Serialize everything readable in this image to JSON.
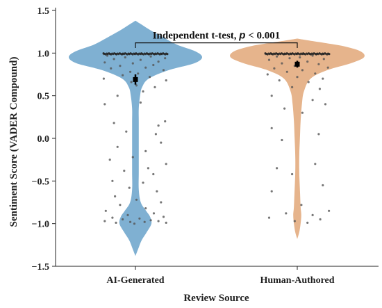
{
  "chart_data": {
    "type": "violin",
    "xlabel": "Review Source",
    "ylabel": "Sentiment Score (VADER Compound)",
    "ylim": [
      -1.5,
      1.5
    ],
    "yticks": [
      -1.5,
      -1.0,
      -0.5,
      0.0,
      0.5,
      1.0,
      1.5
    ],
    "ytick_labels": [
      "−1.5",
      "−1.0",
      "−0.5",
      "0.0",
      "0.5",
      "1.0",
      "1.5"
    ],
    "categories": [
      "AI-Generated",
      "Human-Authored"
    ],
    "series": [
      {
        "category": "AI-Generated",
        "color": "#7fb0d2",
        "mean": 0.69,
        "error": 0.06,
        "density": [
          [
            -1.38,
            0.0
          ],
          [
            -1.3,
            0.04
          ],
          [
            -1.2,
            0.09
          ],
          [
            -1.1,
            0.17
          ],
          [
            -1.0,
            0.24
          ],
          [
            -0.92,
            0.22
          ],
          [
            -0.85,
            0.16
          ],
          [
            -0.75,
            0.08
          ],
          [
            -0.6,
            0.05
          ],
          [
            -0.4,
            0.05
          ],
          [
            -0.2,
            0.05
          ],
          [
            0.0,
            0.05
          ],
          [
            0.2,
            0.05
          ],
          [
            0.35,
            0.05
          ],
          [
            0.5,
            0.07
          ],
          [
            0.6,
            0.1
          ],
          [
            0.7,
            0.2
          ],
          [
            0.8,
            0.5
          ],
          [
            0.88,
            0.88
          ],
          [
            0.95,
            1.0
          ],
          [
            1.02,
            0.9
          ],
          [
            1.1,
            0.62
          ],
          [
            1.2,
            0.38
          ],
          [
            1.28,
            0.2
          ],
          [
            1.35,
            0.06
          ],
          [
            1.38,
            0.0
          ]
        ],
        "points": [
          [
            0.99,
            -0.62
          ],
          [
            0.99,
            -0.5
          ],
          [
            0.99,
            -0.38
          ],
          [
            0.99,
            -0.25
          ],
          [
            0.99,
            -0.12
          ],
          [
            0.99,
            0.0
          ],
          [
            0.99,
            0.12
          ],
          [
            0.99,
            0.25
          ],
          [
            0.99,
            0.38
          ],
          [
            0.99,
            0.5
          ],
          [
            0.99,
            0.62
          ],
          [
            0.97,
            -0.55
          ],
          [
            0.96,
            0.3
          ],
          [
            0.95,
            -0.2
          ],
          [
            0.94,
            0.58
          ],
          [
            0.93,
            -0.42
          ],
          [
            0.92,
            0.1
          ],
          [
            0.9,
            0.45
          ],
          [
            0.89,
            -0.6
          ],
          [
            0.88,
            -0.05
          ],
          [
            0.86,
            0.35
          ],
          [
            0.85,
            -0.3
          ],
          [
            0.83,
            0.2
          ],
          [
            0.82,
            -0.48
          ],
          [
            0.8,
            0.55
          ],
          [
            0.78,
            -0.1
          ],
          [
            0.76,
            0.05
          ],
          [
            0.74,
            -0.25
          ],
          [
            0.72,
            0.28
          ],
          [
            0.7,
            -0.62
          ],
          [
            0.68,
            0.6
          ],
          [
            0.66,
            -0.08
          ],
          [
            0.62,
            0.02
          ],
          [
            0.6,
            0.38
          ],
          [
            0.55,
            0.15
          ],
          [
            0.5,
            -0.35
          ],
          [
            0.42,
            0.1
          ],
          [
            0.4,
            -0.6
          ],
          [
            0.2,
            0.58
          ],
          [
            0.18,
            -0.42
          ],
          [
            0.15,
            0.45
          ],
          [
            0.08,
            -0.18
          ],
          [
            0.05,
            0.4
          ],
          [
            -0.05,
            0.5
          ],
          [
            -0.1,
            -0.35
          ],
          [
            -0.15,
            0.2
          ],
          [
            -0.22,
            -0.05
          ],
          [
            -0.25,
            -0.5
          ],
          [
            -0.3,
            0.6
          ],
          [
            -0.35,
            0.25
          ],
          [
            -0.38,
            -0.22
          ],
          [
            -0.42,
            0.35
          ],
          [
            -0.5,
            -0.45
          ],
          [
            -0.52,
            0.15
          ],
          [
            -0.58,
            -0.12
          ],
          [
            -0.62,
            0.42
          ],
          [
            -0.68,
            -0.4
          ],
          [
            -0.72,
            0.02
          ],
          [
            -0.75,
            0.5
          ],
          [
            -0.78,
            -0.3
          ],
          [
            -0.82,
            0.2
          ],
          [
            -0.85,
            -0.58
          ],
          [
            -0.88,
            0.36
          ],
          [
            -0.9,
            -0.15
          ],
          [
            -0.92,
            0.55
          ],
          [
            -0.93,
            -0.45
          ],
          [
            -0.94,
            0.08
          ],
          [
            -0.95,
            -0.25
          ],
          [
            -0.96,
            0.3
          ],
          [
            -0.97,
            -0.6
          ],
          [
            -0.97,
            0.45
          ],
          [
            -0.98,
            -0.1
          ],
          [
            -0.98,
            0.18
          ],
          [
            -0.99,
            -0.38
          ],
          [
            -0.99,
            0.6
          ],
          [
            -1.0,
            -0.02
          ]
        ]
      },
      {
        "category": "Human-Authored",
        "color": "#e6b48c",
        "mean": 0.87,
        "error": 0.04,
        "density": [
          [
            -1.18,
            0.0
          ],
          [
            -1.1,
            0.03
          ],
          [
            -1.0,
            0.05
          ],
          [
            -0.9,
            0.06
          ],
          [
            -0.8,
            0.05
          ],
          [
            -0.6,
            0.04
          ],
          [
            -0.4,
            0.03
          ],
          [
            -0.2,
            0.03
          ],
          [
            0.0,
            0.04
          ],
          [
            0.2,
            0.05
          ],
          [
            0.4,
            0.07
          ],
          [
            0.55,
            0.1
          ],
          [
            0.7,
            0.2
          ],
          [
            0.8,
            0.45
          ],
          [
            0.88,
            0.8
          ],
          [
            0.95,
            1.0
          ],
          [
            1.02,
            0.95
          ],
          [
            1.08,
            0.7
          ],
          [
            1.12,
            0.4
          ],
          [
            1.15,
            0.15
          ],
          [
            1.17,
            0.0
          ]
        ],
        "points": [
          [
            0.99,
            -0.62
          ],
          [
            0.99,
            -0.5
          ],
          [
            0.99,
            -0.38
          ],
          [
            0.99,
            -0.25
          ],
          [
            0.99,
            -0.12
          ],
          [
            0.99,
            0.0
          ],
          [
            0.99,
            0.12
          ],
          [
            0.99,
            0.25
          ],
          [
            0.99,
            0.38
          ],
          [
            0.99,
            0.5
          ],
          [
            0.99,
            0.62
          ],
          [
            0.97,
            0.3
          ],
          [
            0.96,
            -0.4
          ],
          [
            0.95,
            0.05
          ],
          [
            0.94,
            -0.15
          ],
          [
            0.93,
            0.52
          ],
          [
            0.92,
            -0.55
          ],
          [
            0.9,
            0.2
          ],
          [
            0.88,
            -0.3
          ],
          [
            0.87,
            0.42
          ],
          [
            0.85,
            -0.05
          ],
          [
            0.83,
            0.6
          ],
          [
            0.82,
            -0.45
          ],
          [
            0.8,
            0.1
          ],
          [
            0.78,
            -0.2
          ],
          [
            0.76,
            0.35
          ],
          [
            0.75,
            -0.58
          ],
          [
            0.72,
            0.0
          ],
          [
            0.7,
            0.5
          ],
          [
            0.68,
            -0.35
          ],
          [
            0.66,
            0.22
          ],
          [
            0.6,
            -0.1
          ],
          [
            0.58,
            0.44
          ],
          [
            0.5,
            -0.5
          ],
          [
            0.45,
            0.3
          ],
          [
            0.4,
            0.55
          ],
          [
            0.35,
            -0.25
          ],
          [
            0.3,
            0.1
          ],
          [
            0.12,
            -0.5
          ],
          [
            0.05,
            0.42
          ],
          [
            -0.02,
            -0.3
          ],
          [
            -0.3,
            0.35
          ],
          [
            -0.35,
            -0.4
          ],
          [
            -0.42,
            -0.1
          ],
          [
            -0.55,
            0.5
          ],
          [
            -0.62,
            -0.5
          ],
          [
            -0.78,
            0.08
          ],
          [
            -0.85,
            0.62
          ],
          [
            -0.88,
            -0.22
          ],
          [
            -0.9,
            0.3
          ],
          [
            -0.93,
            -0.55
          ],
          [
            -0.95,
            0.45
          ],
          [
            -0.97,
            -0.05
          ],
          [
            -0.99,
            0.2
          ]
        ]
      }
    ],
    "annotation": {
      "text": "Independent t-test, ",
      "p_symbol": "p",
      "p_rest": " < 0.001"
    }
  }
}
